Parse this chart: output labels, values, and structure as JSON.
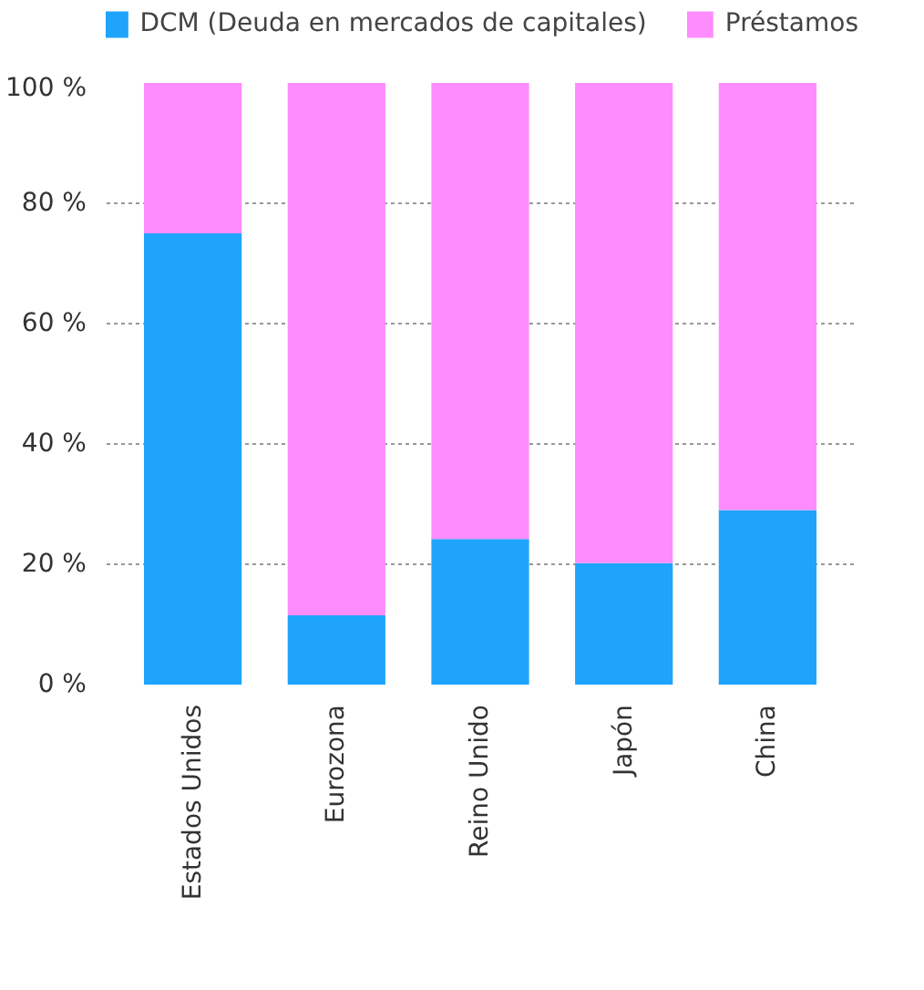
{
  "chart_data": {
    "type": "bar",
    "stacked": true,
    "categories": [
      "Estados Unidos",
      "Eurozona",
      "Reino Unido",
      "Japón",
      "China"
    ],
    "series": [
      {
        "name": "DCM (Deuda en mercados de capitales)",
        "color": "#1fa4fc",
        "values": [
          75,
          11.5,
          24.2,
          20.2,
          29
        ]
      },
      {
        "name": "Préstamos",
        "color": "#ff8cfc",
        "values": [
          25,
          88.5,
          75.8,
          79.8,
          71
        ]
      }
    ],
    "ylim": [
      0,
      100
    ],
    "yticks": [
      {
        "value": 0,
        "label": "0 %"
      },
      {
        "value": 20,
        "label": "20 %"
      },
      {
        "value": 40,
        "label": "40 %"
      },
      {
        "value": 60,
        "label": "60 %"
      },
      {
        "value": 80,
        "label": "80 %"
      },
      {
        "value": 100,
        "label": "100 %"
      }
    ],
    "grid": "y",
    "legend": "top right"
  }
}
